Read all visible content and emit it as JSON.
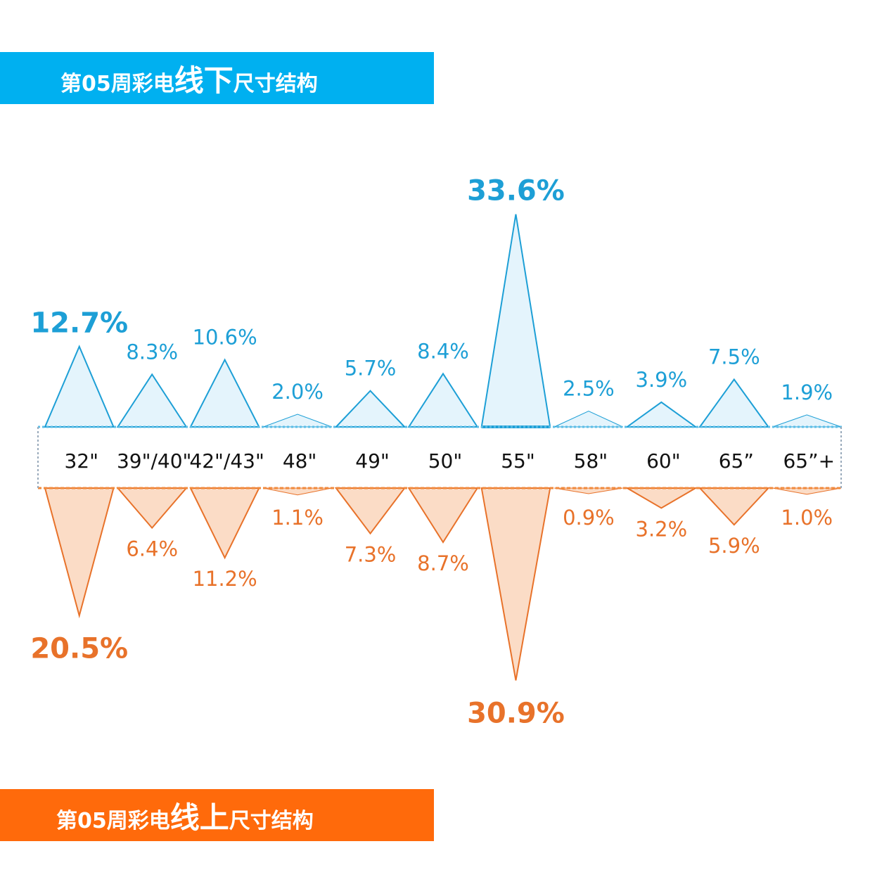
{
  "header_offline": {
    "prefix": "第05周彩电",
    "emphasis": "线下",
    "suffix": "尺寸结构",
    "color": "#00b0f0"
  },
  "header_online": {
    "prefix": "第05周彩电",
    "emphasis": "线上",
    "suffix": "尺寸结构",
    "color": "#ff6a0b"
  },
  "chart_data": {
    "type": "area",
    "title": "",
    "categories": [
      "32\"",
      "39\"/40\"",
      "42\"/43\"",
      "48\"",
      "49\"",
      "50\"",
      "55\"",
      "58\"",
      "60\"",
      "65”",
      "65”+"
    ],
    "series": [
      {
        "name": "",
        "direction": "up",
        "color": "#1d9fd6",
        "fill": "#e4f4fc",
        "values": [
          12.7,
          8.3,
          10.6,
          2.0,
          5.7,
          8.4,
          33.6,
          2.5,
          3.9,
          7.5,
          1.9
        ],
        "labels": [
          "12.7%",
          "8.3%",
          "10.6%",
          "2.0%",
          "5.7%",
          "8.4%",
          "33.6%",
          "2.5%",
          "3.9%",
          "7.5%",
          "1.9%"
        ]
      },
      {
        "name": "",
        "direction": "down",
        "color": "#e8722a",
        "fill": "#fbdcc6",
        "values": [
          20.5,
          6.4,
          11.2,
          1.1,
          7.3,
          8.7,
          30.9,
          0.9,
          3.2,
          5.9,
          1.0
        ],
        "labels": [
          "20.5%",
          "6.4%",
          "11.2%",
          "1.1%",
          "7.3%",
          "8.7%",
          "30.9%",
          "0.9%",
          "3.2%",
          "5.9%",
          "1.0%"
        ]
      }
    ],
    "unit": "%",
    "highlight_top_n": 2
  }
}
